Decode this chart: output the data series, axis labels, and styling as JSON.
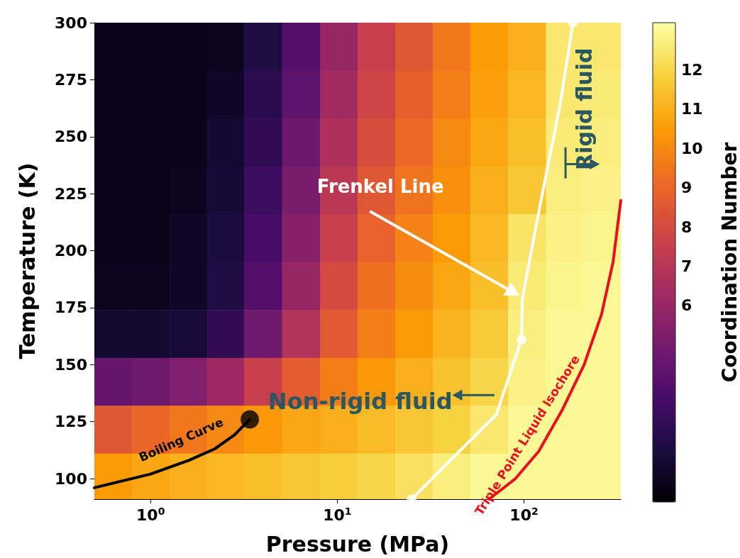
{
  "chart_data": {
    "type": "heatmap",
    "xlabel": "Pressure (MPa)",
    "ylabel": "Temperature (K)",
    "clabel": "Coordination Number",
    "log": "x",
    "xlim": [
      0.5,
      330
    ],
    "xticks": [
      {
        "value": 1,
        "label": "10$^{0}$"
      },
      {
        "value": 10,
        "label": "10$^{1}$"
      },
      {
        "value": 100,
        "label": "10$^{2}$"
      }
    ],
    "ylim": [
      91,
      300
    ],
    "yticks": [
      100,
      125,
      150,
      175,
      200,
      225,
      250,
      275,
      300
    ],
    "clim": [
      1,
      13.2
    ],
    "cticks": [
      6,
      7,
      8,
      9,
      10,
      11,
      12
    ],
    "x": [
      0.63,
      1.0,
      1.6,
      2.5,
      4.0,
      6.4,
      10.2,
      16.2,
      25.8,
      41,
      65,
      104,
      165,
      262
    ],
    "y": [
      289.5,
      268.5,
      247.5,
      226.5,
      205.5,
      184.5,
      163.5,
      142.5,
      121.5,
      100.5
    ],
    "cells": [
      [
        1.5,
        1.5,
        1.5,
        1.6,
        2.5,
        4,
        6,
        7.5,
        8.5,
        9.5,
        10.5,
        11,
        12.5,
        12.5
      ],
      [
        1.5,
        1.5,
        1.5,
        1.8,
        2.8,
        4.3,
        6.3,
        7.8,
        8.8,
        9.7,
        10.6,
        11.2,
        12.5,
        12.6
      ],
      [
        1.5,
        1.5,
        1.5,
        2,
        3,
        4.7,
        6.7,
        8.1,
        9.1,
        10,
        10.8,
        11.4,
        12.6,
        12.7
      ],
      [
        1.5,
        1.5,
        1.6,
        2.1,
        3.3,
        5.1,
        7.1,
        8.5,
        9.4,
        10.2,
        11,
        11.6,
        12.7,
        12.8
      ],
      [
        1.5,
        1.5,
        1.7,
        2.3,
        3.6,
        5.5,
        7.5,
        8.9,
        9.8,
        10.5,
        11.2,
        12.4,
        12.8,
        12.9
      ],
      [
        1.6,
        1.6,
        1.8,
        2.5,
        4,
        6,
        8,
        9.3,
        10.1,
        10.8,
        11.4,
        12.6,
        12.9,
        13
      ],
      [
        2,
        2,
        2.2,
        3,
        4.8,
        6.8,
        8.6,
        9.7,
        10.5,
        11.1,
        11.7,
        12.7,
        13,
        13
      ],
      [
        4.5,
        4.8,
        5.3,
        6.2,
        7.5,
        8.7,
        9.7,
        10.4,
        11,
        11.5,
        12,
        12.8,
        13,
        13
      ],
      [
        8.5,
        9,
        9.5,
        10,
        10.4,
        10.8,
        11,
        11.3,
        11.6,
        11.9,
        12.5,
        13,
        13,
        13
      ],
      [
        10.5,
        10.8,
        11,
        11.2,
        11.4,
        11.6,
        11.8,
        12,
        12.3,
        12.7,
        13,
        13,
        13,
        13
      ]
    ],
    "series": [
      {
        "name": "Frenkel Line",
        "type": "line",
        "color": "#ffffff",
        "x": [
          25,
          42,
          71,
          97,
          98,
          120,
          156,
          183
        ],
        "values": [
          91,
          109.5,
          128,
          161,
          179,
          217,
          264,
          300
        ]
      },
      {
        "type": "scatter",
        "color": "#ffffff",
        "marker": "circle",
        "x": [
          25,
          97,
          183
        ],
        "values": [
          91,
          161,
          300
        ]
      },
      {
        "name": "Boiling Curve",
        "type": "line",
        "color": "#000000",
        "x": [
          0.5,
          1,
          1.6,
          2.2,
          2.8,
          3.4
        ],
        "values": [
          96,
          102,
          108,
          113,
          119,
          126
        ]
      },
      {
        "type": "scatter",
        "color": "#000000",
        "marker": "circle",
        "x": [
          3.4
        ],
        "values": [
          126
        ]
      },
      {
        "name": "Triple Point Liquid Isochore",
        "type": "line",
        "color": "#e8101e",
        "x": [
          65,
          90,
          120,
          160,
          210,
          260,
          300,
          330
        ],
        "values": [
          91,
          100,
          112,
          130,
          150,
          172,
          195,
          222
        ]
      }
    ],
    "annotations": [
      "Non-rigid fluid",
      "Rigid fluid"
    ]
  }
}
